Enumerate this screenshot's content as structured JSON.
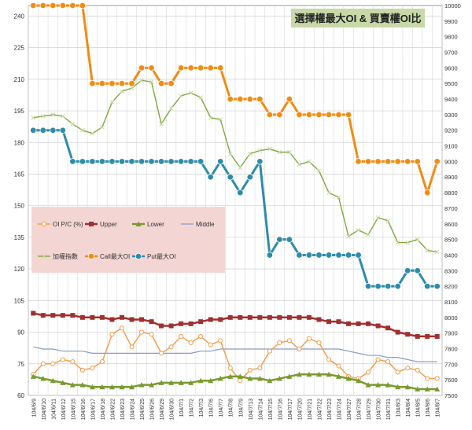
{
  "chart_data": {
    "type": "line",
    "title": "選擇權最大OI & 買賣權OI比",
    "x": [
      "104/6/9",
      "104/6/10",
      "104/6/11",
      "104/6/12",
      "104/6/15",
      "104/6/16",
      "104/6/17",
      "104/6/18",
      "104/6/22",
      "104/6/23",
      "104/6/24",
      "104/6/25",
      "104/6/26",
      "104/6/29",
      "104/6/30",
      "104/7/1",
      "104/7/2",
      "104/7/3",
      "104/7/6",
      "104/7/7",
      "104/7/8",
      "104/7/9",
      "104/7/13",
      "104/7/14",
      "104/7/15",
      "104/7/16",
      "104/7/17",
      "104/7/20",
      "104/7/21",
      "104/7/22",
      "104/7/23",
      "104/7/24",
      "104/7/27",
      "104/7/28",
      "104/7/29",
      "104/7/30",
      "104/7/31",
      "104/8/3",
      "104/8/4",
      "104/8/5",
      "104/8/6",
      "104/8/7"
    ],
    "left_axis": {
      "min": 60,
      "max": 245,
      "ticks": [
        60,
        75,
        90,
        105,
        120,
        135,
        150,
        165,
        180,
        195,
        210,
        225,
        240
      ]
    },
    "right_axis": {
      "min": 7500,
      "max": 10000,
      "ticks": [
        7500,
        7600,
        7700,
        7800,
        7900,
        8000,
        8100,
        8200,
        8300,
        8400,
        8500,
        8600,
        8700,
        8800,
        8900,
        9000,
        9100,
        9200,
        9300,
        9400,
        9500,
        9600,
        9700,
        9800,
        9900,
        10000
      ]
    },
    "grid": true,
    "legend": {
      "placement": "middle-left",
      "entries": [
        "OI P/C (%)",
        "Upper",
        "Lower",
        "Middle",
        "加權指數",
        "Call最大OI",
        "Put最大OI"
      ]
    },
    "series": [
      {
        "name": "OI P/C (%)",
        "axis": "left",
        "color": "#f0a050",
        "marker": "circle-open",
        "values": [
          70,
          75,
          75,
          77,
          76,
          72,
          73,
          76,
          89,
          92,
          83,
          90,
          89,
          80,
          83,
          88,
          85,
          88,
          84,
          86,
          73,
          67,
          72,
          73,
          81,
          85,
          86,
          82,
          87,
          85,
          77,
          74,
          69,
          68,
          71,
          77,
          76,
          71,
          73,
          72,
          68,
          68
        ]
      },
      {
        "name": "Upper",
        "axis": "left",
        "color": "#a03030",
        "marker": "square",
        "values": [
          99,
          98,
          98,
          98,
          98,
          97,
          97,
          97,
          96,
          97,
          96,
          96,
          95,
          93,
          93,
          94,
          94,
          95,
          96,
          96,
          97,
          97,
          97,
          97,
          97,
          97,
          97,
          97,
          97,
          96,
          95,
          95,
          94,
          94,
          94,
          93,
          92,
          90,
          89,
          88,
          88,
          88
        ]
      },
      {
        "name": "Lower",
        "axis": "left",
        "color": "#7a9a30",
        "marker": "triangle",
        "values": [
          69,
          68,
          67,
          66,
          65,
          65,
          64,
          64,
          64,
          64,
          64,
          65,
          65,
          66,
          66,
          66,
          66,
          67,
          67,
          68,
          69,
          69,
          68,
          68,
          67,
          68,
          69,
          70,
          70,
          70,
          70,
          69,
          68,
          67,
          65,
          65,
          65,
          64,
          64,
          63,
          63,
          63
        ]
      },
      {
        "name": "Middle",
        "axis": "left",
        "color": "#8a9ac0",
        "marker": "none",
        "values": [
          83,
          82,
          82,
          81,
          81,
          81,
          80,
          80,
          80,
          80,
          80,
          80,
          80,
          80,
          80,
          80,
          80,
          81,
          81,
          82,
          82,
          82,
          82,
          82,
          82,
          82,
          82,
          82,
          82,
          82,
          82,
          82,
          81,
          80,
          79,
          79,
          78,
          78,
          77,
          76,
          76,
          76
        ]
      },
      {
        "name": "加權指數",
        "axis": "right",
        "color": "#80a840",
        "marker": "cross",
        "values": [
          9280,
          9290,
          9300,
          9290,
          9240,
          9200,
          9180,
          9220,
          9380,
          9450,
          9470,
          9520,
          9510,
          9240,
          9340,
          9420,
          9440,
          9410,
          9280,
          9270,
          9050,
          8960,
          9050,
          9070,
          9080,
          9060,
          9060,
          8980,
          9000,
          8940,
          8800,
          8770,
          8520,
          8560,
          8530,
          8640,
          8620,
          8480,
          8480,
          8500,
          8430,
          8420
        ]
      },
      {
        "name": "Call最大OI",
        "axis": "right",
        "color": "#f08c14",
        "marker": "circle",
        "values": [
          10000,
          10000,
          10000,
          10000,
          10000,
          10000,
          9500,
          9500,
          9500,
          9500,
          9500,
          9600,
          9600,
          9500,
          9500,
          9600,
          9600,
          9600,
          9600,
          9600,
          9400,
          9400,
          9400,
          9400,
          9300,
          9300,
          9400,
          9300,
          9300,
          9300,
          9300,
          9300,
          9300,
          9000,
          9000,
          9000,
          9000,
          9000,
          9000,
          9000,
          8800,
          9000
        ]
      },
      {
        "name": "Put最大OI",
        "axis": "right",
        "color": "#2e8ca8",
        "marker": "circle",
        "values": [
          9200,
          9200,
          9200,
          9200,
          9000,
          9000,
          9000,
          9000,
          9000,
          9000,
          9000,
          9000,
          9000,
          9000,
          9000,
          9000,
          9000,
          9000,
          8900,
          9000,
          8900,
          8800,
          8900,
          9000,
          8400,
          8500,
          8500,
          8400,
          8400,
          8400,
          8400,
          8400,
          8400,
          8400,
          8200,
          8200,
          8200,
          8200,
          8300,
          8300,
          8200,
          8200
        ]
      }
    ]
  }
}
